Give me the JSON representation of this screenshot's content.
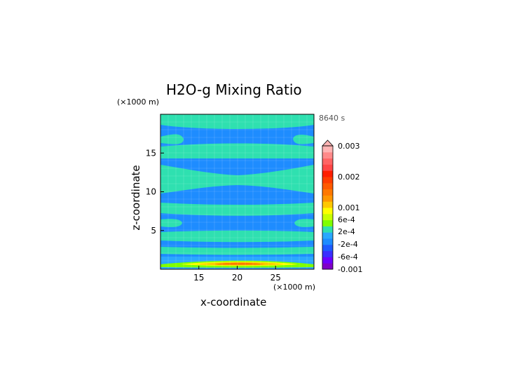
{
  "chart_data": {
    "type": "heatmap",
    "title": "H2O-g Mixing Ratio",
    "time_label": "8640 s",
    "xlabel": "x-coordinate",
    "ylabel": "z-coordinate",
    "x_unit": "(×1000 m)",
    "y_unit": "(×1000 m)",
    "xlim": [
      10,
      30
    ],
    "ylim": [
      0,
      20
    ],
    "x_ticks": [
      "15",
      "20",
      "25"
    ],
    "x_tick_values": [
      15,
      20,
      25
    ],
    "y_ticks": [
      "5",
      "10",
      "15"
    ],
    "y_tick_values": [
      5,
      10,
      15
    ],
    "grid": true,
    "colorbar": {
      "colors": [
        "#7f00c8",
        "#6b00ff",
        "#3a2fff",
        "#1e5bff",
        "#1e8cff",
        "#2aa8ff",
        "#2fe0b0",
        "#7fff00",
        "#c8ff00",
        "#ffff00",
        "#ffc800",
        "#ff9600",
        "#ff7800",
        "#ff5a00",
        "#ff3c00",
        "#ff1e00",
        "#ff4646",
        "#ff6464",
        "#ff8a8a",
        "#ffb4b4"
      ],
      "tick_labels": [
        "0.003",
        "0.002",
        "0.001",
        "6e-4",
        "2e-4",
        "-2e-4",
        "-6e-4",
        "-0.001"
      ],
      "tick_values": [
        0.003,
        0.002,
        0.001,
        0.0006,
        0.0002,
        -0.0002,
        -0.0006,
        -0.001
      ]
    },
    "fields": {
      "background": "#1e8cff",
      "positive_bands": "#2fe0b0",
      "surface_layer": "#2aa8ff",
      "near_surface_max": [
        "#7fff00",
        "#ffff00",
        "#ffc800",
        "#ff7800"
      ]
    }
  }
}
